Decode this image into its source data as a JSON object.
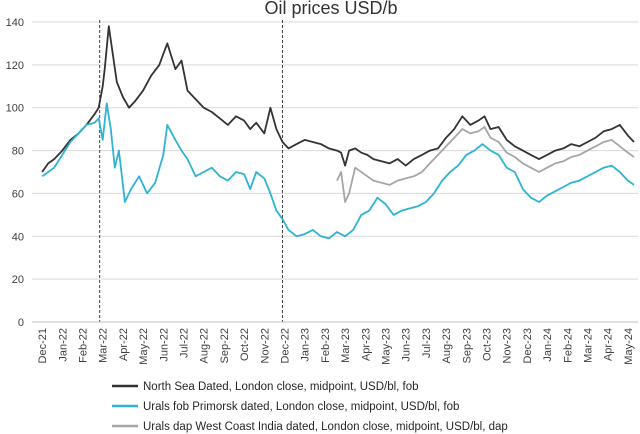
{
  "chart_data": {
    "type": "line",
    "title": "Oil prices USD/b",
    "xlabel": "",
    "ylabel": "",
    "ylim": [
      0,
      140
    ],
    "yticks": [
      0,
      20,
      40,
      60,
      80,
      100,
      120,
      140
    ],
    "grid": "horizontal",
    "legend_position": "bottom",
    "categories": [
      "Dec-21",
      "Jan-22",
      "Feb-22",
      "Mar-22",
      "Apr-22",
      "May-22",
      "Jun-22",
      "Jul-22",
      "Aug-22",
      "Sep-22",
      "Oct-22",
      "Nov-22",
      "Dec-22",
      "Jan-23",
      "Feb-23",
      "Mar-23",
      "Apr-23",
      "May-23",
      "Jun-23",
      "Jul-23",
      "Aug-23",
      "Sep-23",
      "Oct-23",
      "Nov-23",
      "Dec-23",
      "Jan-24",
      "Feb-24",
      "Mar-24",
      "Apr-24",
      "May-24"
    ],
    "vlines": [
      2.85,
      11.9
    ],
    "series": [
      {
        "name": "North Sea Dated, London close, midpoint, USD/bl, fob",
        "color": "#333333",
        "x": [
          0,
          0.3,
          0.6,
          1,
          1.4,
          1.8,
          2.2,
          2.6,
          2.8,
          3.0,
          3.1,
          3.3,
          3.5,
          3.7,
          4.0,
          4.3,
          4.6,
          5.0,
          5.4,
          5.8,
          6.0,
          6.2,
          6.6,
          6.9,
          7.2,
          7.6,
          8.0,
          8.4,
          8.8,
          9.2,
          9.6,
          10.0,
          10.3,
          10.6,
          11.0,
          11.3,
          11.6,
          11.9,
          12.2,
          12.6,
          13.0,
          13.4,
          13.8,
          14.2,
          14.6,
          14.8,
          15.0,
          15.2,
          15.5,
          15.8,
          16.1,
          16.4,
          16.8,
          17.2,
          17.6,
          18.0,
          18.4,
          18.8,
          19.2,
          19.6,
          20.0,
          20.4,
          20.8,
          21.2,
          21.6,
          21.9,
          22.2,
          22.6,
          23.0,
          23.4,
          23.8,
          24.2,
          24.6,
          25.0,
          25.4,
          25.8,
          26.2,
          26.6,
          27.0,
          27.4,
          27.8,
          28.2,
          28.6,
          29.0,
          29.3
        ],
        "values": [
          70,
          74,
          76,
          80,
          85,
          88,
          92,
          97,
          100,
          110,
          118,
          138,
          125,
          112,
          105,
          100,
          103,
          108,
          115,
          120,
          125,
          130,
          118,
          122,
          108,
          104,
          100,
          98,
          95,
          92,
          96,
          94,
          90,
          93,
          88,
          100,
          90,
          84,
          81,
          83,
          85,
          84,
          83,
          81,
          80,
          79,
          73,
          80,
          81,
          79,
          78,
          76,
          75,
          74,
          76,
          73,
          76,
          78,
          80,
          81,
          86,
          90,
          96,
          92,
          94,
          96,
          90,
          91,
          85,
          82,
          80,
          78,
          76,
          78,
          80,
          81,
          83,
          82,
          84,
          86,
          89,
          90,
          92,
          87,
          84
        ]
      },
      {
        "name": "Urals fob Primorsk dated, London close, midpoint, USD/bl, fob",
        "color": "#2fb3d2",
        "x": [
          0,
          0.3,
          0.6,
          1,
          1.4,
          1.8,
          2.2,
          2.6,
          2.8,
          3.0,
          3.2,
          3.4,
          3.6,
          3.8,
          4.1,
          4.4,
          4.8,
          5.2,
          5.6,
          6.0,
          6.2,
          6.6,
          6.9,
          7.2,
          7.6,
          8.0,
          8.4,
          8.8,
          9.2,
          9.6,
          10.0,
          10.3,
          10.6,
          11.0,
          11.3,
          11.6,
          11.9,
          12.2,
          12.6,
          13.0,
          13.4,
          13.8,
          14.2,
          14.6,
          15.0,
          15.4,
          15.8,
          16.2,
          16.6,
          17.0,
          17.4,
          17.8,
          18.2,
          18.6,
          19.0,
          19.4,
          19.8,
          20.2,
          20.6,
          21.0,
          21.4,
          21.8,
          22.2,
          22.6,
          23.0,
          23.4,
          23.8,
          24.2,
          24.6,
          25.0,
          25.4,
          25.8,
          26.2,
          26.6,
          27.0,
          27.4,
          27.8,
          28.2,
          28.6,
          29.0,
          29.3
        ],
        "values": [
          68,
          70,
          72,
          78,
          84,
          88,
          92,
          93,
          95,
          85,
          102,
          90,
          72,
          80,
          56,
          62,
          68,
          60,
          65,
          78,
          92,
          85,
          80,
          76,
          68,
          70,
          72,
          68,
          66,
          70,
          69,
          62,
          70,
          67,
          60,
          52,
          48,
          43,
          40,
          41,
          43,
          40,
          39,
          42,
          40,
          43,
          50,
          52,
          58,
          55,
          50,
          52,
          53,
          54,
          56,
          60,
          66,
          70,
          73,
          78,
          80,
          83,
          80,
          78,
          72,
          70,
          62,
          58,
          56,
          59,
          61,
          63,
          65,
          66,
          68,
          70,
          72,
          73,
          70,
          66,
          64
        ]
      },
      {
        "name": "Urals dap West Coast India dated, London close, midpoint, USD/bl, dap",
        "color": "#a6a6a6",
        "x": [
          14.6,
          14.8,
          15.0,
          15.2,
          15.5,
          15.8,
          16.1,
          16.4,
          16.8,
          17.2,
          17.6,
          18.0,
          18.4,
          18.8,
          19.2,
          19.6,
          20.0,
          20.4,
          20.8,
          21.2,
          21.6,
          21.9,
          22.2,
          22.6,
          23.0,
          23.4,
          23.8,
          24.2,
          24.6,
          25.0,
          25.4,
          25.8,
          26.2,
          26.6,
          27.0,
          27.4,
          27.8,
          28.2,
          28.6,
          29.0,
          29.3
        ],
        "values": [
          66,
          70,
          56,
          60,
          72,
          70,
          68,
          66,
          65,
          64,
          66,
          67,
          68,
          70,
          74,
          78,
          82,
          86,
          90,
          88,
          89,
          91,
          86,
          84,
          79,
          77,
          74,
          72,
          70,
          72,
          74,
          75,
          77,
          78,
          80,
          82,
          84,
          85,
          82,
          79,
          77
        ]
      }
    ]
  }
}
